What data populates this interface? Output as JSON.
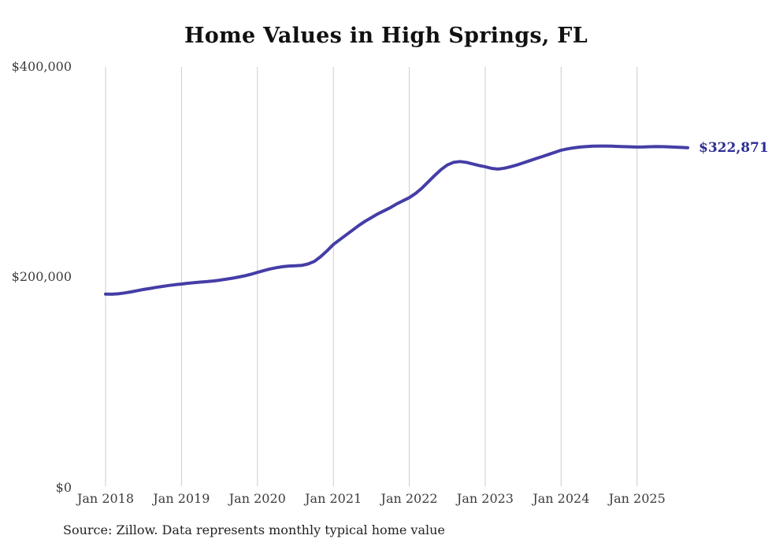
{
  "title": "Home Values in High Springs, FL",
  "source_note": "Source: Zillow. Data represents monthly typical home value",
  "colors": {
    "line": "#453da6",
    "final_label": "#2d2d92",
    "grid": "#cccccc",
    "title": "#111111",
    "axis_text": "#3c3c3c",
    "source_text": "#222222",
    "background": "#ffffff"
  },
  "chart_data": {
    "type": "line",
    "title": "Home Values in High Springs, FL",
    "xlabel": "",
    "ylabel": "",
    "ylim": [
      0,
      400000
    ],
    "y_tick_labels": [
      "$0",
      "$200,000",
      "$400,000"
    ],
    "y_tick_values": [
      0,
      200000,
      400000
    ],
    "x_tick_labels": [
      "Jan 2018",
      "Jan 2019",
      "Jan 2020",
      "Jan 2021",
      "Jan 2022",
      "Jan 2023",
      "Jan 2024",
      "Jan 2025"
    ],
    "grid": "vertical-only",
    "legend": "none",
    "frequency": "monthly",
    "final_value": 322871,
    "final_value_label": "$322,871",
    "months": [
      "2018-01",
      "2018-02",
      "2018-03",
      "2018-04",
      "2018-05",
      "2018-06",
      "2018-07",
      "2018-08",
      "2018-09",
      "2018-10",
      "2018-11",
      "2018-12",
      "2019-01",
      "2019-02",
      "2019-03",
      "2019-04",
      "2019-05",
      "2019-06",
      "2019-07",
      "2019-08",
      "2019-09",
      "2019-10",
      "2019-11",
      "2019-12",
      "2020-01",
      "2020-02",
      "2020-03",
      "2020-04",
      "2020-05",
      "2020-06",
      "2020-07",
      "2020-08",
      "2020-09",
      "2020-10",
      "2020-11",
      "2020-12",
      "2021-01",
      "2021-02",
      "2021-03",
      "2021-04",
      "2021-05",
      "2021-06",
      "2021-07",
      "2021-08",
      "2021-09",
      "2021-10",
      "2021-11",
      "2021-12",
      "2022-01",
      "2022-02",
      "2022-03",
      "2022-04",
      "2022-05",
      "2022-06",
      "2022-07",
      "2022-08",
      "2022-09",
      "2022-10",
      "2022-11",
      "2022-12",
      "2023-01",
      "2023-02",
      "2023-03",
      "2023-04",
      "2023-05",
      "2023-06",
      "2023-07",
      "2023-08",
      "2023-09",
      "2023-10",
      "2023-11",
      "2023-12",
      "2024-01",
      "2024-02",
      "2024-03",
      "2024-04",
      "2024-05",
      "2024-06",
      "2024-07",
      "2024-08",
      "2024-09",
      "2024-10",
      "2024-11",
      "2024-12",
      "2025-01",
      "2025-02",
      "2025-03",
      "2025-04",
      "2025-05",
      "2025-06",
      "2025-07",
      "2025-08",
      "2025-09"
    ],
    "values": [
      184000,
      183800,
      184200,
      185000,
      186000,
      187200,
      188300,
      189300,
      190300,
      191200,
      192100,
      192900,
      193500,
      194200,
      194800,
      195300,
      195800,
      196400,
      197100,
      198000,
      199000,
      200100,
      201300,
      202800,
      204500,
      206200,
      207800,
      209000,
      210000,
      210600,
      210900,
      211200,
      212500,
      215000,
      219500,
      225000,
      231000,
      235500,
      240000,
      244500,
      249000,
      253000,
      256500,
      260000,
      263000,
      266000,
      269500,
      272500,
      275500,
      279500,
      284500,
      290500,
      296500,
      302000,
      306500,
      309000,
      309800,
      309000,
      307500,
      306000,
      304800,
      303300,
      302600,
      303400,
      304800,
      306500,
      308500,
      310500,
      312500,
      314500,
      316500,
      318500,
      320500,
      321800,
      322800,
      323500,
      324000,
      324300,
      324500,
      324500,
      324300,
      324100,
      323900,
      323700,
      323500,
      323600,
      323800,
      324000,
      323900,
      323700,
      323400,
      323100,
      322871
    ]
  }
}
